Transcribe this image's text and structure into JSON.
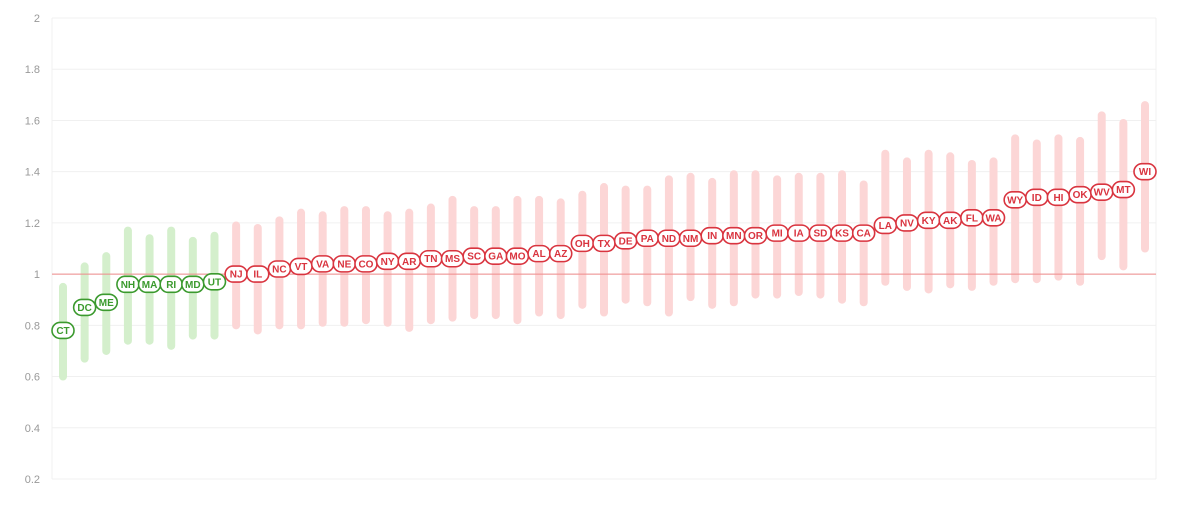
{
  "chart_data": {
    "type": "scatter",
    "title": "",
    "xlabel": "",
    "ylabel": "",
    "ylim": [
      0.2,
      2
    ],
    "yticks": [
      "2",
      "1.8",
      "1.6",
      "1.4",
      "1.2",
      "1",
      "0.8",
      "0.6",
      "0.4",
      "0.2"
    ],
    "reference_line": 1,
    "grid": true,
    "colors": {
      "below": "#3b9a2e",
      "below_range": "#d4efcc",
      "above": "#d9343f",
      "above_range": "#fcd6d6",
      "reference": "#ee8a8a",
      "grid": "#f0f0f0",
      "tick": "#999999"
    },
    "points": [
      {
        "label": "CT",
        "value": 0.78,
        "low": 0.6,
        "high": 0.95
      },
      {
        "label": "DC",
        "value": 0.87,
        "low": 0.67,
        "high": 1.03
      },
      {
        "label": "ME",
        "value": 0.89,
        "low": 0.7,
        "high": 1.07
      },
      {
        "label": "NH",
        "value": 0.96,
        "low": 0.74,
        "high": 1.17
      },
      {
        "label": "MA",
        "value": 0.96,
        "low": 0.74,
        "high": 1.14
      },
      {
        "label": "RI",
        "value": 0.96,
        "low": 0.72,
        "high": 1.17
      },
      {
        "label": "MD",
        "value": 0.96,
        "low": 0.76,
        "high": 1.13
      },
      {
        "label": "UT",
        "value": 0.97,
        "low": 0.76,
        "high": 1.15
      },
      {
        "label": "NJ",
        "value": 1.0,
        "low": 0.8,
        "high": 1.19
      },
      {
        "label": "IL",
        "value": 1.0,
        "low": 0.78,
        "high": 1.18
      },
      {
        "label": "NC",
        "value": 1.02,
        "low": 0.8,
        "high": 1.21
      },
      {
        "label": "VT",
        "value": 1.03,
        "low": 0.8,
        "high": 1.24
      },
      {
        "label": "VA",
        "value": 1.04,
        "low": 0.81,
        "high": 1.23
      },
      {
        "label": "NE",
        "value": 1.04,
        "low": 0.81,
        "high": 1.25
      },
      {
        "label": "CO",
        "value": 1.04,
        "low": 0.82,
        "high": 1.25
      },
      {
        "label": "NY",
        "value": 1.05,
        "low": 0.81,
        "high": 1.23
      },
      {
        "label": "AR",
        "value": 1.05,
        "low": 0.79,
        "high": 1.24
      },
      {
        "label": "TN",
        "value": 1.06,
        "low": 0.82,
        "high": 1.26
      },
      {
        "label": "MS",
        "value": 1.06,
        "low": 0.83,
        "high": 1.29
      },
      {
        "label": "SC",
        "value": 1.07,
        "low": 0.84,
        "high": 1.25
      },
      {
        "label": "GA",
        "value": 1.07,
        "low": 0.84,
        "high": 1.25
      },
      {
        "label": "MO",
        "value": 1.07,
        "low": 0.82,
        "high": 1.29
      },
      {
        "label": "AL",
        "value": 1.08,
        "low": 0.85,
        "high": 1.29
      },
      {
        "label": "AZ",
        "value": 1.08,
        "low": 0.84,
        "high": 1.28
      },
      {
        "label": "OH",
        "value": 1.12,
        "low": 0.88,
        "high": 1.31
      },
      {
        "label": "TX",
        "value": 1.12,
        "low": 0.85,
        "high": 1.34
      },
      {
        "label": "DE",
        "value": 1.13,
        "low": 0.9,
        "high": 1.33
      },
      {
        "label": "PA",
        "value": 1.14,
        "low": 0.89,
        "high": 1.33
      },
      {
        "label": "ND",
        "value": 1.14,
        "low": 0.85,
        "high": 1.37
      },
      {
        "label": "NM",
        "value": 1.14,
        "low": 0.91,
        "high": 1.38
      },
      {
        "label": "IN",
        "value": 1.15,
        "low": 0.88,
        "high": 1.36
      },
      {
        "label": "MN",
        "value": 1.15,
        "low": 0.89,
        "high": 1.39
      },
      {
        "label": "OR",
        "value": 1.15,
        "low": 0.92,
        "high": 1.39
      },
      {
        "label": "MI",
        "value": 1.16,
        "low": 0.92,
        "high": 1.37
      },
      {
        "label": "IA",
        "value": 1.16,
        "low": 0.93,
        "high": 1.38
      },
      {
        "label": "SD",
        "value": 1.16,
        "low": 0.92,
        "high": 1.38
      },
      {
        "label": "KS",
        "value": 1.16,
        "low": 0.9,
        "high": 1.39
      },
      {
        "label": "CA",
        "value": 1.16,
        "low": 0.89,
        "high": 1.35
      },
      {
        "label": "LA",
        "value": 1.19,
        "low": 0.97,
        "high": 1.47
      },
      {
        "label": "NV",
        "value": 1.2,
        "low": 0.95,
        "high": 1.44
      },
      {
        "label": "KY",
        "value": 1.21,
        "low": 0.94,
        "high": 1.47
      },
      {
        "label": "AK",
        "value": 1.21,
        "low": 0.96,
        "high": 1.46
      },
      {
        "label": "FL",
        "value": 1.22,
        "low": 0.95,
        "high": 1.43
      },
      {
        "label": "WA",
        "value": 1.22,
        "low": 0.97,
        "high": 1.44
      },
      {
        "label": "WY",
        "value": 1.29,
        "low": 0.98,
        "high": 1.53
      },
      {
        "label": "ID",
        "value": 1.3,
        "low": 0.98,
        "high": 1.51
      },
      {
        "label": "HI",
        "value": 1.3,
        "low": 0.99,
        "high": 1.53
      },
      {
        "label": "OK",
        "value": 1.31,
        "low": 0.97,
        "high": 1.52
      },
      {
        "label": "WV",
        "value": 1.32,
        "low": 1.07,
        "high": 1.62
      },
      {
        "label": "MT",
        "value": 1.33,
        "low": 1.03,
        "high": 1.59
      },
      {
        "label": "WI",
        "value": 1.4,
        "low": 1.1,
        "high": 1.66
      }
    ]
  }
}
